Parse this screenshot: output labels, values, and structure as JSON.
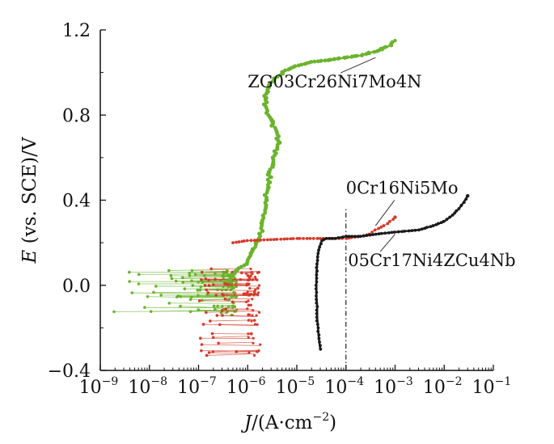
{
  "chart_data": {
    "type": "scatter",
    "xscale": "log",
    "xlim": [
      1e-09,
      0.1
    ],
    "ylim": [
      -0.4,
      1.2
    ],
    "xlabel": {
      "var": "J",
      "unit_open": "/(A",
      "dot": "·",
      "unit": "cm",
      "exp": "−2",
      "close": ")"
    },
    "ylabel": {
      "var": "E",
      "rest": " (vs. SCE)/V"
    },
    "xticks": [
      {
        "value": 1e-09,
        "base": "10",
        "exp": "−9"
      },
      {
        "value": 1e-08,
        "base": "10",
        "exp": "−8"
      },
      {
        "value": 1e-07,
        "base": "10",
        "exp": "−7"
      },
      {
        "value": 1e-06,
        "base": "10",
        "exp": "−6"
      },
      {
        "value": 1e-05,
        "base": "10",
        "exp": "−5"
      },
      {
        "value": 0.0001,
        "base": "10",
        "exp": "−4"
      },
      {
        "value": 0.001,
        "base": "10",
        "exp": "−3"
      },
      {
        "value": 0.01,
        "base": "10",
        "exp": "−2"
      },
      {
        "value": 0.1,
        "base": "10",
        "exp": "−1"
      }
    ],
    "yticks": [
      {
        "value": -0.4,
        "label": "−0.4"
      },
      {
        "value": 0.0,
        "label": "0.0"
      },
      {
        "value": 0.4,
        "label": "0.4"
      },
      {
        "value": 0.8,
        "label": "0.8"
      },
      {
        "value": 1.2,
        "label": "1.2"
      }
    ],
    "reference_line": {
      "x": 0.0001,
      "style": "dash-dot"
    },
    "series": [
      {
        "name": "ZG03Cr26Ni7Mo4N",
        "color": "#6ab42d",
        "label_anchor": [
          0.0004,
          1.07
        ],
        "label_pos": [
          1e-06,
          0.93
        ],
        "scatter_zone": {
          "xrange": [
            1.5e-09,
            6e-07
          ],
          "yrange": [
            -0.14,
            0.07
          ],
          "n": 70
        },
        "points": [
          [
            4e-07,
            0.02
          ],
          [
            5e-07,
            0.05
          ],
          [
            7e-07,
            0.08
          ],
          [
            9e-07,
            0.1
          ],
          [
            1.1e-06,
            0.13
          ],
          [
            1.3e-06,
            0.16
          ],
          [
            1.5e-06,
            0.19
          ],
          [
            1.8e-06,
            0.23
          ],
          [
            2e-06,
            0.28
          ],
          [
            2.2e-06,
            0.34
          ],
          [
            2.3e-06,
            0.4
          ],
          [
            2.5e-06,
            0.46
          ],
          [
            2.8e-06,
            0.52
          ],
          [
            3.2e-06,
            0.58
          ],
          [
            3.6e-06,
            0.62
          ],
          [
            4e-06,
            0.66
          ],
          [
            4.3e-06,
            0.68
          ],
          [
            4e-06,
            0.71
          ],
          [
            3.5e-06,
            0.74
          ],
          [
            3e-06,
            0.77
          ],
          [
            2.6e-06,
            0.8
          ],
          [
            2.4e-06,
            0.83
          ],
          [
            2.3e-06,
            0.86
          ],
          [
            2.2e-06,
            0.88
          ],
          [
            2.3e-06,
            0.9
          ],
          [
            2.5e-06,
            0.92
          ],
          [
            3e-06,
            0.95
          ],
          [
            4e-06,
            0.98
          ],
          [
            6e-06,
            1.01
          ],
          [
            1e-05,
            1.03
          ],
          [
            2e-05,
            1.05
          ],
          [
            5e-05,
            1.06
          ],
          [
            0.0001,
            1.07
          ],
          [
            0.0002,
            1.08
          ],
          [
            0.0004,
            1.1
          ],
          [
            0.0007,
            1.12
          ],
          [
            0.001,
            1.15
          ]
        ]
      },
      {
        "name": "0Cr16Ni5Mo",
        "color": "#d63a2a",
        "label_anchor": [
          0.0004,
          0.28
        ],
        "label_pos": [
          0.0001,
          0.43
        ],
        "scatter_zone": {
          "xrange": [
            1e-07,
            1.8e-06
          ],
          "yrange": [
            -0.33,
            0.08
          ],
          "n": 55
        },
        "points": [
          [
            5e-07,
            0.2
          ],
          [
            1e-06,
            0.21
          ],
          [
            1e-05,
            0.22
          ],
          [
            3e-05,
            0.22
          ],
          [
            6e-05,
            0.22
          ],
          [
            0.0001,
            0.22
          ],
          [
            0.0002,
            0.23
          ],
          [
            0.0003,
            0.24
          ],
          [
            0.0004,
            0.26
          ],
          [
            0.0006,
            0.28
          ],
          [
            0.0008,
            0.3
          ],
          [
            0.001,
            0.32
          ]
        ]
      },
      {
        "name": "05Cr17Ni4ZCu4Nb",
        "color": "#1a1a1a",
        "label_anchor": [
          0.001,
          0.24
        ],
        "label_pos": [
          0.00011,
          0.09
        ],
        "points": [
          [
            3e-05,
            -0.3
          ],
          [
            2.8e-05,
            -0.25
          ],
          [
            2.7e-05,
            -0.2
          ],
          [
            2.6e-05,
            -0.15
          ],
          [
            2.6e-05,
            -0.1
          ],
          [
            2.5e-05,
            -0.05
          ],
          [
            2.5e-05,
            0.0
          ],
          [
            2.5e-05,
            0.05
          ],
          [
            2.6e-05,
            0.1
          ],
          [
            2.7e-05,
            0.15
          ],
          [
            2.9e-05,
            0.18
          ],
          [
            3.2e-05,
            0.21
          ],
          [
            4e-05,
            0.22
          ],
          [
            6e-05,
            0.22
          ],
          [
            0.0001,
            0.23
          ],
          [
            0.0002,
            0.23
          ],
          [
            0.0004,
            0.24
          ],
          [
            0.001,
            0.25
          ],
          [
            0.003,
            0.26
          ],
          [
            0.006,
            0.28
          ],
          [
            0.01,
            0.3
          ],
          [
            0.015,
            0.33
          ],
          [
            0.02,
            0.36
          ],
          [
            0.025,
            0.39
          ],
          [
            0.03,
            0.42
          ]
        ]
      }
    ]
  }
}
